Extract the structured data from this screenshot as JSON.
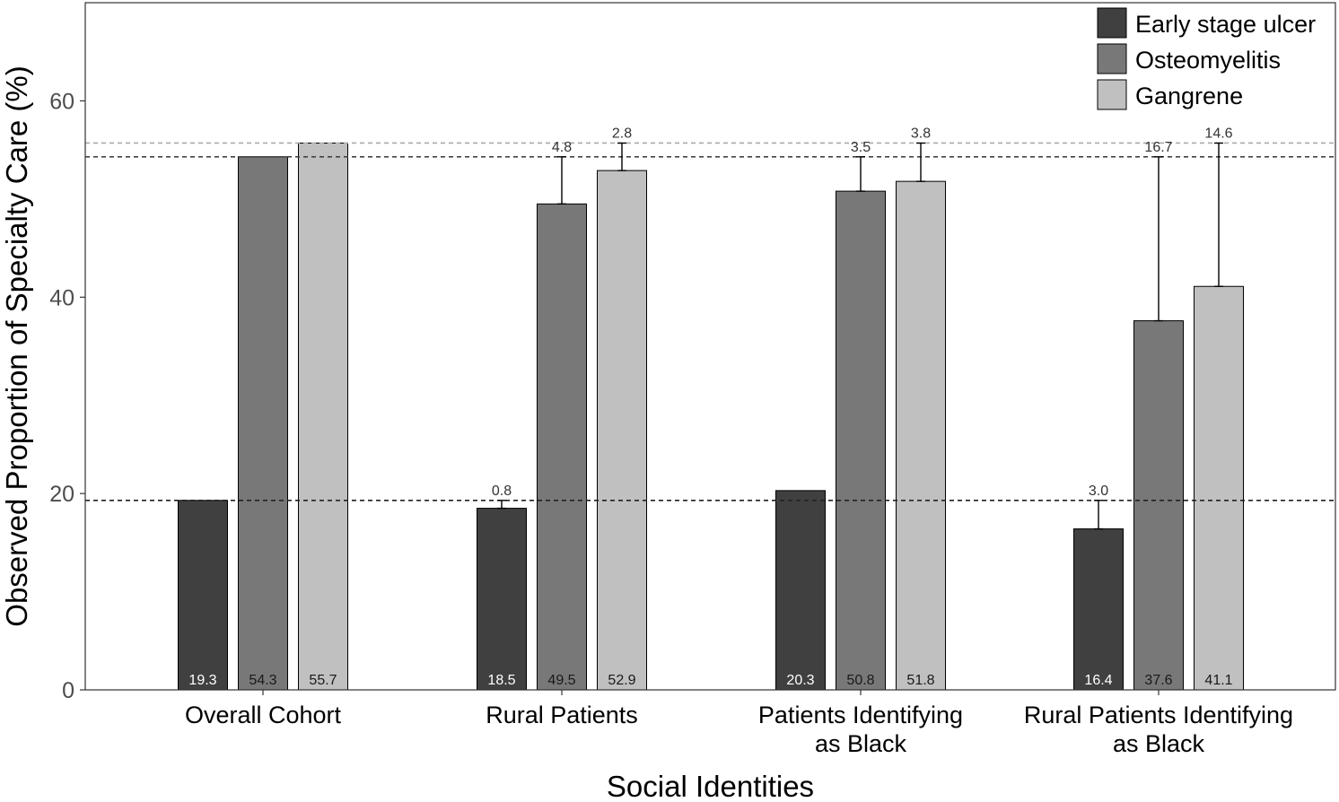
{
  "chart_data": {
    "type": "bar",
    "xlabel": "Social Identities",
    "ylabel": "Observed Proportion of Specialty Care (%)",
    "ylim": [
      0,
      70
    ],
    "yticks": [
      0,
      20,
      40,
      60
    ],
    "grid": false,
    "legend_position": "top-right",
    "categories": [
      [
        "Overall Cohort"
      ],
      [
        "Rural Patients"
      ],
      [
        "Patients Identifying",
        "as Black"
      ],
      [
        "Rural Patients Identifying",
        "as Black"
      ]
    ],
    "series": [
      {
        "name": "Early stage ulcer",
        "color": "#404040",
        "value_label_color": "#ffffff",
        "values": [
          19.3,
          18.5,
          20.3,
          16.4
        ],
        "value_labels": [
          "19.3",
          "18.5",
          "20.3",
          "16.4"
        ],
        "gap_labels": [
          null,
          "0.8",
          null,
          "3.0"
        ]
      },
      {
        "name": "Osteomyelitis",
        "color": "#787878",
        "value_label_color": "#1a1a1a",
        "values": [
          54.3,
          49.5,
          50.8,
          37.6
        ],
        "value_labels": [
          "54.3",
          "49.5",
          "50.8",
          "37.6"
        ],
        "gap_labels": [
          null,
          "4.8",
          "3.5",
          "16.7"
        ]
      },
      {
        "name": "Gangrene",
        "color": "#c0c0c0",
        "value_label_color": "#1a1a1a",
        "values": [
          55.7,
          52.9,
          51.8,
          41.1
        ],
        "value_labels": [
          "55.7",
          "52.9",
          "51.8",
          "41.1"
        ],
        "gap_labels": [
          null,
          "2.8",
          "3.8",
          "14.6"
        ]
      }
    ],
    "reference_lines": [
      {
        "series": "Early stage ulcer",
        "value": 19.3,
        "color": "#222222"
      },
      {
        "series": "Osteomyelitis",
        "value": 54.3,
        "color": "#444444"
      },
      {
        "series": "Gangrene",
        "value": 55.7,
        "color": "#aaaaaa"
      }
    ]
  }
}
